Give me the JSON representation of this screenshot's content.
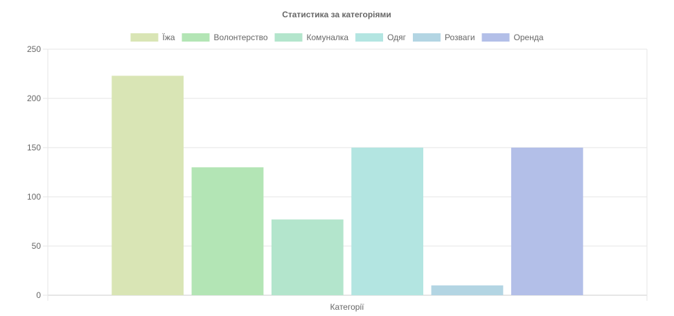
{
  "chart_data": {
    "type": "bar",
    "title": "Статистика за категоріями",
    "categories": [
      "Категорії"
    ],
    "xlabel": "Категорії",
    "ylabel": "",
    "ylim": [
      0,
      250
    ],
    "yticks": [
      0,
      50,
      100,
      150,
      200,
      250
    ],
    "grid": true,
    "legend_position": "top",
    "series": [
      {
        "name": "Їжа",
        "values": [
          223
        ],
        "color": "#d9e5b5"
      },
      {
        "name": "Волонтерство",
        "values": [
          130
        ],
        "color": "#b3e5b5"
      },
      {
        "name": "Комуналка",
        "values": [
          77
        ],
        "color": "#b3e5cc"
      },
      {
        "name": "Одяг",
        "values": [
          150
        ],
        "color": "#b3e5e1"
      },
      {
        "name": "Розваги",
        "values": [
          10
        ],
        "color": "#b3d5e3"
      },
      {
        "name": "Оренда",
        "values": [
          150
        ],
        "color": "#b3bfe8"
      }
    ]
  }
}
